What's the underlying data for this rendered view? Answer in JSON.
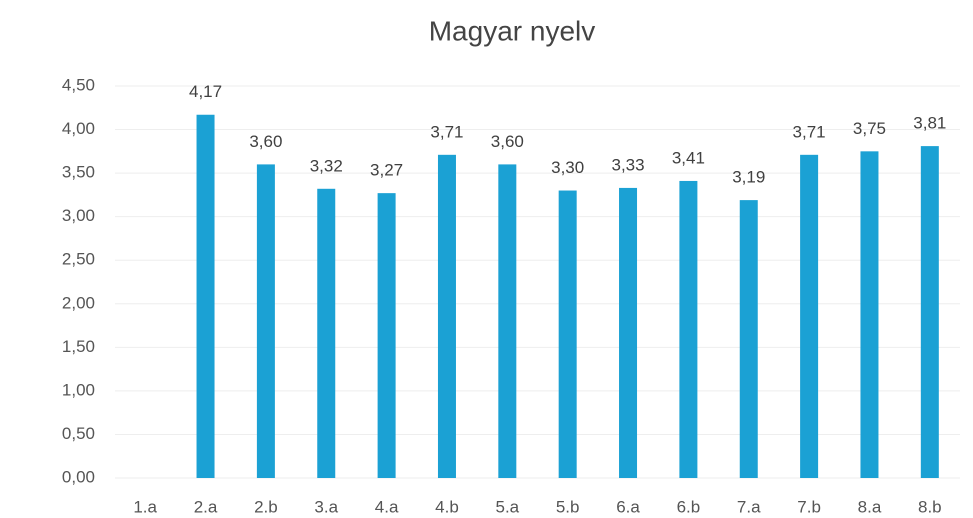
{
  "chart_data": {
    "type": "bar",
    "title": "Magyar nyelv",
    "categories": [
      "1.a",
      "2.a",
      "2.b",
      "3.a",
      "4.a",
      "4.b",
      "5.a",
      "5.b",
      "6.a",
      "6.b",
      "7.a",
      "7.b",
      "8.a",
      "8.b"
    ],
    "values": [
      null,
      4.17,
      3.6,
      3.32,
      3.27,
      3.71,
      3.6,
      3.3,
      3.33,
      3.41,
      3.19,
      3.71,
      3.75,
      3.81
    ],
    "value_labels": [
      null,
      "4,17",
      "3,60",
      "3,32",
      "3,27",
      "3,71",
      "3,60",
      "3,30",
      "3,33",
      "3,41",
      "3,19",
      "3,71",
      "3,75",
      "3,81"
    ],
    "color": "#1ba1d4",
    "ylim": [
      0,
      4.5
    ],
    "yticks": [
      {
        "value": 0,
        "label": "0,00"
      },
      {
        "value": 0.5,
        "label": "0,50"
      },
      {
        "value": 1,
        "label": "1,00"
      },
      {
        "value": 1.5,
        "label": "1,50"
      },
      {
        "value": 2,
        "label": "2,00"
      },
      {
        "value": 2.5,
        "label": "2,50"
      },
      {
        "value": 3,
        "label": "3,00"
      },
      {
        "value": 3.5,
        "label": "3,50"
      },
      {
        "value": 4,
        "label": "4,00"
      },
      {
        "value": 4.5,
        "label": "4,50"
      }
    ],
    "grid": true
  }
}
